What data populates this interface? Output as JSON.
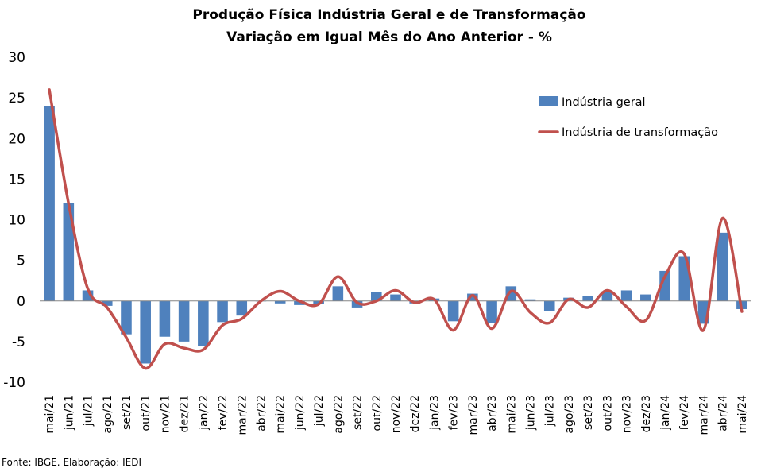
{
  "chart_data": {
    "type": "bar",
    "title": "Produção Física Indústria Geral e de Transformação",
    "subtitle": "Variação em Igual Mês do Ano Anterior - %",
    "xlabel": "",
    "ylabel": "",
    "ylim": [
      -10,
      30
    ],
    "yticks": [
      "30",
      "25",
      "20",
      "15",
      "10",
      "5",
      "0",
      "-5",
      "-10"
    ],
    "legend_position": "top-right",
    "grid": false,
    "categories": [
      "mai/21",
      "jun/21",
      "jul/21",
      "ago/21",
      "set/21",
      "out/21",
      "nov/21",
      "dez/21",
      "jan/22",
      "fev/22",
      "mar/22",
      "abr/22",
      "mai/22",
      "jun/22",
      "jul/22",
      "ago/22",
      "set/22",
      "out/22",
      "nov/22",
      "dez/22",
      "jan/23",
      "fev/23",
      "mar/23",
      "abr/23",
      "mai/23",
      "jun/23",
      "jul/23",
      "ago/23",
      "set/23",
      "out/23",
      "nov/23",
      "dez/23",
      "jan/24",
      "fev/24",
      "mar/24",
      "abr/24",
      "mai/24"
    ],
    "series": [
      {
        "name": "Indústria geral",
        "type": "bar",
        "color": "#4f81bd",
        "values": [
          24.0,
          12.1,
          1.3,
          -0.6,
          -4.1,
          -7.7,
          -4.4,
          -5.0,
          -5.6,
          -2.6,
          -1.8,
          0.0,
          -0.3,
          -0.5,
          -0.4,
          1.8,
          -0.8,
          1.1,
          0.8,
          -0.3,
          0.3,
          -2.5,
          0.9,
          -2.7,
          1.8,
          0.2,
          -1.2,
          0.4,
          0.6,
          1.2,
          1.3,
          0.8,
          3.7,
          5.5,
          -2.8,
          8.4,
          -1.0
        ]
      },
      {
        "name": "Indústria de transformação",
        "type": "line",
        "color": "#c0504d",
        "values": [
          26.0,
          12.0,
          1.5,
          -0.8,
          -4.5,
          -8.3,
          -5.3,
          -5.8,
          -6.0,
          -3.0,
          -2.2,
          0.0,
          1.2,
          0.0,
          -0.4,
          3.0,
          -0.2,
          0.0,
          1.3,
          -0.2,
          0.2,
          -3.6,
          0.7,
          -3.4,
          1.2,
          -1.4,
          -2.7,
          0.2,
          -0.8,
          1.3,
          -0.7,
          -2.4,
          3.0,
          5.8,
          -3.6,
          10.2,
          -1.3
        ]
      }
    ]
  },
  "footer": {
    "source": "Fonte: IBGE. Elaboração: IEDI"
  }
}
